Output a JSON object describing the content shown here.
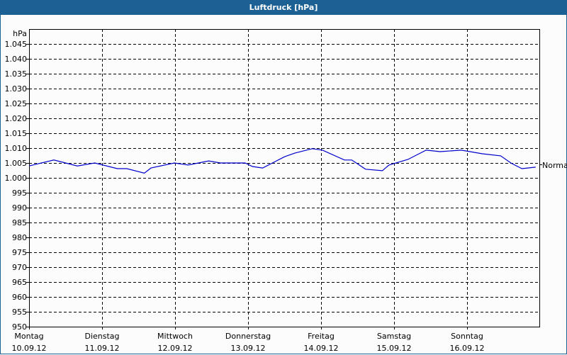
{
  "window": {
    "title": "Luftdruck [hPa]"
  },
  "chart_data": {
    "type": "line",
    "title": "Luftdruck [hPa]",
    "ylabel": "hPa",
    "xlabel": "",
    "ylim": [
      950,
      1050
    ],
    "grid": true,
    "y_ticks": [
      "950",
      "955",
      "960",
      "965",
      "970",
      "975",
      "980",
      "985",
      "990",
      "995",
      "1.000",
      "1.005",
      "1.010",
      "1.015",
      "1.020",
      "1.025",
      "1.030",
      "1.035",
      "1.040",
      "1.045"
    ],
    "x_ticks": [
      {
        "day": "Montag",
        "date": "10.09.12"
      },
      {
        "day": "Dienstag",
        "date": "11.09.12"
      },
      {
        "day": "Mittwoch",
        "date": "12.09.12"
      },
      {
        "day": "Donnerstag",
        "date": "13.09.12"
      },
      {
        "day": "Freitag",
        "date": "14.09.12"
      },
      {
        "day": "Samstag",
        "date": "15.09.12"
      },
      {
        "day": "Sonntag",
        "date": "16.09.12"
      }
    ],
    "reference_line": {
      "label": "Normal",
      "value": 1005
    },
    "series": [
      {
        "name": "Luftdruck",
        "color": "#0000cc",
        "x_days": [
          0.0,
          0.34,
          0.66,
          0.9,
          1.21,
          1.34,
          1.58,
          1.67,
          1.99,
          2.18,
          2.46,
          2.62,
          2.96,
          3.06,
          3.2,
          3.5,
          3.64,
          3.88,
          4.02,
          4.32,
          4.42,
          4.61,
          4.84,
          4.93,
          5.19,
          5.44,
          5.63,
          5.92,
          6.21,
          6.46,
          6.6,
          6.75,
          6.94
        ],
        "values": [
          1004.0,
          1006.0,
          1004.0,
          1005.0,
          1003.1,
          1003.1,
          1001.6,
          1003.3,
          1005.0,
          1004.3,
          1005.7,
          1005.0,
          1005.0,
          1003.8,
          1003.3,
          1007.1,
          1008.3,
          1009.8,
          1009.3,
          1006.0,
          1006.0,
          1002.9,
          1002.4,
          1004.3,
          1006.2,
          1009.3,
          1008.8,
          1009.3,
          1008.1,
          1007.4,
          1005.0,
          1003.1,
          1003.6
        ]
      }
    ]
  }
}
